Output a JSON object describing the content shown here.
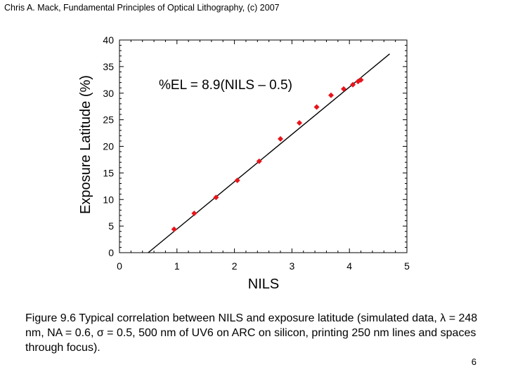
{
  "header": "Chris A. Mack, Fundamental Principles of Optical Lithography, (c) 2007",
  "caption": {
    "part1": "Figure 9.6  Typical correlation between NILS and exposure latitude (simulated data, ",
    "lambda_symbol": "λ",
    "part2": " = 248 nm, NA = 0.6, ",
    "sigma_symbol": "σ",
    "part3": " = 0.5, 500 nm of UV6 on ARC on silicon, printing 250 nm lines and spaces through focus)."
  },
  "page_number": "6",
  "chart_data": {
    "type": "scatter",
    "title": "",
    "xlabel": "NILS",
    "ylabel": "Exposure Latitude (%)",
    "xlim": [
      0,
      5
    ],
    "ylim": [
      0,
      40
    ],
    "x_ticks": [
      "0",
      "1",
      "2",
      "3",
      "4",
      "5"
    ],
    "y_ticks": [
      "0",
      "5",
      "10",
      "15",
      "20",
      "25",
      "30",
      "35",
      "40"
    ],
    "annotation": "%EL = 8.9(NILS – 0.5)",
    "marker_color": "#e8141b",
    "series": [
      {
        "name": "simulated data",
        "x": [
          0.95,
          1.3,
          1.68,
          2.05,
          2.43,
          2.8,
          3.13,
          3.43,
          3.68,
          3.9,
          4.06,
          4.15,
          4.2
        ],
        "y": [
          4.4,
          7.4,
          10.4,
          13.6,
          17.2,
          21.4,
          24.4,
          27.4,
          29.6,
          30.8,
          31.6,
          32.2,
          32.5
        ]
      }
    ],
    "fit_line": {
      "slope": 8.9,
      "x_intercept": 0.5,
      "x_range": [
        0.5,
        4.7
      ]
    }
  }
}
